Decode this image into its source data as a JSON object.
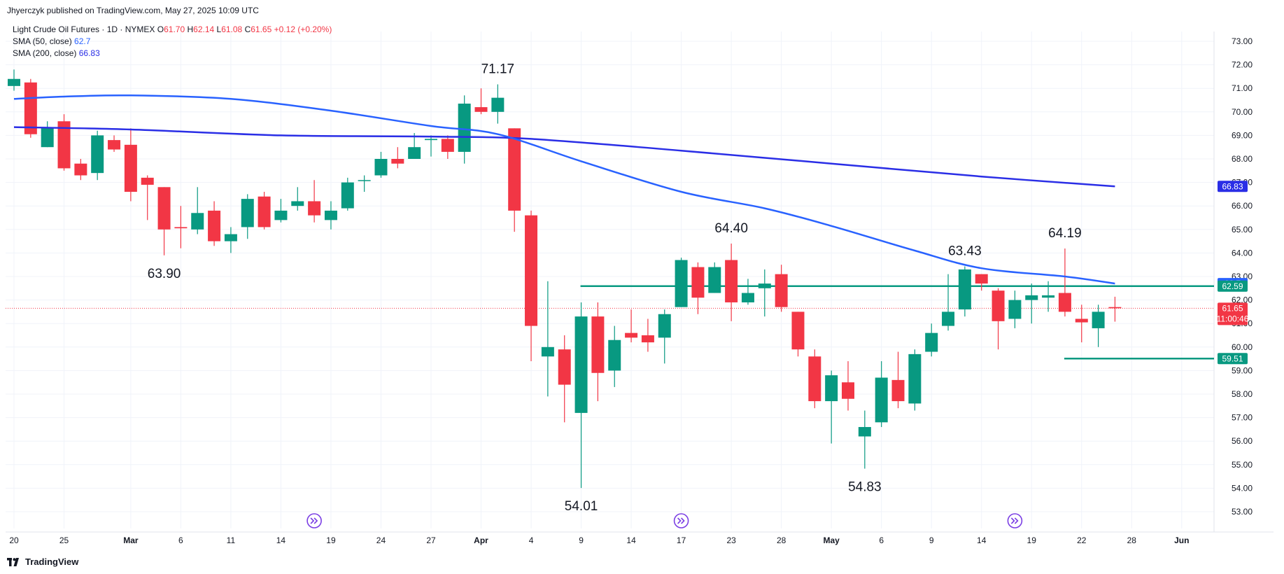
{
  "header": {
    "publisher": "Jhyerczyk published on TradingView.com, May 27, 2025 10:09 UTC",
    "symbol": "Light Crude Oil Futures · 1D · NYMEX",
    "ohlc": {
      "o_label": "O",
      "o": "61.70",
      "h_label": "H",
      "h": "62.14",
      "l_label": "L",
      "l": "61.08",
      "c_label": "C",
      "c": "61.65",
      "change": "+0.12 (+0.20%)"
    },
    "sma50": {
      "label": "SMA (50, close)",
      "value": "62.7"
    },
    "sma200": {
      "label": "SMA (200, close)",
      "value": "66.83"
    }
  },
  "footer": {
    "brand": "TradingView"
  },
  "colors": {
    "up": "#089981",
    "down": "#f23645",
    "sma50": "#2962ff",
    "sma200": "#2a2ee6",
    "level": "#089981",
    "last_price_line": "#f23645"
  },
  "chart_data": {
    "type": "candlestick",
    "y_axis": {
      "range": [
        52.5,
        73.5
      ],
      "ticks": [
        "53.00",
        "54.00",
        "55.00",
        "56.00",
        "57.00",
        "58.00",
        "59.00",
        "60.00",
        "61.00",
        "62.00",
        "63.00",
        "64.00",
        "65.00",
        "66.00",
        "67.00",
        "68.00",
        "69.00",
        "70.00",
        "71.00",
        "72.00",
        "73.00"
      ]
    },
    "x_axis": {
      "ticks": [
        {
          "label": "20",
          "date": "2025-02-20"
        },
        {
          "label": "25",
          "date": "2025-02-25"
        },
        {
          "label": "Mar",
          "date": "2025-03-03"
        },
        {
          "label": "6",
          "date": "2025-03-06"
        },
        {
          "label": "11",
          "date": "2025-03-11"
        },
        {
          "label": "14",
          "date": "2025-03-14"
        },
        {
          "label": "19",
          "date": "2025-03-19"
        },
        {
          "label": "24",
          "date": "2025-03-24"
        },
        {
          "label": "27",
          "date": "2025-03-27"
        },
        {
          "label": "Apr",
          "date": "2025-04-01"
        },
        {
          "label": "4",
          "date": "2025-04-04"
        },
        {
          "label": "9",
          "date": "2025-04-09"
        },
        {
          "label": "14",
          "date": "2025-04-14"
        },
        {
          "label": "17",
          "date": "2025-04-17"
        },
        {
          "label": "23",
          "date": "2025-04-23"
        },
        {
          "label": "28",
          "date": "2025-04-28"
        },
        {
          "label": "May",
          "date": "2025-05-01"
        },
        {
          "label": "6",
          "date": "2025-05-06"
        },
        {
          "label": "9",
          "date": "2025-05-09"
        },
        {
          "label": "14",
          "date": "2025-05-14"
        },
        {
          "label": "19",
          "date": "2025-05-19"
        },
        {
          "label": "22",
          "date": "2025-05-22"
        },
        {
          "label": "28",
          "date": "2025-05-28"
        },
        {
          "label": "Jun",
          "date": "2025-06-02"
        }
      ]
    },
    "candles": [
      {
        "date": "2025-02-20",
        "o": 71.1,
        "h": 71.8,
        "l": 70.9,
        "c": 71.4
      },
      {
        "date": "2025-02-21",
        "o": 71.25,
        "h": 71.4,
        "l": 68.9,
        "c": 69.05
      },
      {
        "date": "2025-02-24",
        "o": 68.5,
        "h": 69.6,
        "l": 68.5,
        "c": 69.35
      },
      {
        "date": "2025-02-25",
        "o": 69.6,
        "h": 69.9,
        "l": 67.5,
        "c": 67.6
      },
      {
        "date": "2025-02-26",
        "o": 67.8,
        "h": 68.0,
        "l": 67.1,
        "c": 67.3
      },
      {
        "date": "2025-02-27",
        "o": 67.4,
        "h": 69.2,
        "l": 67.1,
        "c": 69.0
      },
      {
        "date": "2025-02-28",
        "o": 68.8,
        "h": 69.0,
        "l": 68.3,
        "c": 68.4
      },
      {
        "date": "2025-03-03",
        "o": 68.6,
        "h": 69.3,
        "l": 66.2,
        "c": 66.6
      },
      {
        "date": "2025-03-04",
        "o": 67.2,
        "h": 67.3,
        "l": 65.4,
        "c": 66.9
      },
      {
        "date": "2025-03-05",
        "o": 66.8,
        "h": 66.8,
        "l": 63.9,
        "c": 65.0
      },
      {
        "date": "2025-03-06",
        "o": 65.1,
        "h": 66.0,
        "l": 64.2,
        "c": 65.05
      },
      {
        "date": "2025-03-07",
        "o": 65.0,
        "h": 66.8,
        "l": 64.8,
        "c": 65.7
      },
      {
        "date": "2025-03-10",
        "o": 65.8,
        "h": 66.2,
        "l": 64.3,
        "c": 64.5
      },
      {
        "date": "2025-03-11",
        "o": 64.5,
        "h": 65.1,
        "l": 64.0,
        "c": 64.8
      },
      {
        "date": "2025-03-12",
        "o": 65.1,
        "h": 66.5,
        "l": 64.6,
        "c": 66.3
      },
      {
        "date": "2025-03-13",
        "o": 66.4,
        "h": 66.6,
        "l": 65.0,
        "c": 65.1
      },
      {
        "date": "2025-03-14",
        "o": 65.4,
        "h": 66.3,
        "l": 65.3,
        "c": 65.8
      },
      {
        "date": "2025-03-17",
        "o": 66.0,
        "h": 66.8,
        "l": 65.8,
        "c": 66.2
      },
      {
        "date": "2025-03-18",
        "o": 66.2,
        "h": 67.1,
        "l": 65.3,
        "c": 65.6
      },
      {
        "date": "2025-03-19",
        "o": 65.4,
        "h": 66.2,
        "l": 65.0,
        "c": 65.8
      },
      {
        "date": "2025-03-20",
        "o": 65.9,
        "h": 67.2,
        "l": 65.8,
        "c": 67.0
      },
      {
        "date": "2025-03-21",
        "o": 67.1,
        "h": 67.3,
        "l": 66.6,
        "c": 67.1
      },
      {
        "date": "2025-03-24",
        "o": 67.3,
        "h": 68.3,
        "l": 67.2,
        "c": 68.0
      },
      {
        "date": "2025-03-25",
        "o": 68.0,
        "h": 68.5,
        "l": 67.6,
        "c": 67.8
      },
      {
        "date": "2025-03-26",
        "o": 68.0,
        "h": 69.1,
        "l": 68.1,
        "c": 68.5
      },
      {
        "date": "2025-03-27",
        "o": 68.8,
        "h": 69.0,
        "l": 68.1,
        "c": 68.85
      },
      {
        "date": "2025-03-28",
        "o": 68.85,
        "h": 69.0,
        "l": 68.0,
        "c": 68.3
      },
      {
        "date": "2025-03-31",
        "o": 68.3,
        "h": 70.7,
        "l": 67.8,
        "c": 70.35
      },
      {
        "date": "2025-04-01",
        "o": 70.2,
        "h": 71.0,
        "l": 69.9,
        "c": 70.0
      },
      {
        "date": "2025-04-02",
        "o": 70.0,
        "h": 71.17,
        "l": 69.5,
        "c": 70.6
      },
      {
        "date": "2025-04-03",
        "o": 69.3,
        "h": 69.3,
        "l": 64.9,
        "c": 65.8
      },
      {
        "date": "2025-04-04",
        "o": 65.6,
        "h": 65.8,
        "l": 59.4,
        "c": 60.9
      },
      {
        "date": "2025-04-07",
        "o": 59.6,
        "h": 62.8,
        "l": 57.9,
        "c": 60.0
      },
      {
        "date": "2025-04-08",
        "o": 59.9,
        "h": 60.5,
        "l": 56.8,
        "c": 58.4
      },
      {
        "date": "2025-04-09",
        "o": 57.2,
        "h": 61.9,
        "l": 54.01,
        "c": 61.3
      },
      {
        "date": "2025-04-10",
        "o": 61.3,
        "h": 61.9,
        "l": 57.7,
        "c": 58.9
      },
      {
        "date": "2025-04-11",
        "o": 59.0,
        "h": 60.9,
        "l": 58.3,
        "c": 60.3
      },
      {
        "date": "2025-04-14",
        "o": 60.6,
        "h": 61.6,
        "l": 60.2,
        "c": 60.4
      },
      {
        "date": "2025-04-15",
        "o": 60.5,
        "h": 61.2,
        "l": 59.8,
        "c": 60.2
      },
      {
        "date": "2025-04-16",
        "o": 60.4,
        "h": 61.6,
        "l": 59.3,
        "c": 61.4
      },
      {
        "date": "2025-04-17",
        "o": 61.7,
        "h": 63.8,
        "l": 61.7,
        "c": 63.7
      },
      {
        "date": "2025-04-21",
        "o": 63.4,
        "h": 63.6,
        "l": 61.4,
        "c": 62.1
      },
      {
        "date": "2025-04-22",
        "o": 62.3,
        "h": 63.6,
        "l": 62.3,
        "c": 63.4
      },
      {
        "date": "2025-04-23",
        "o": 63.7,
        "h": 64.4,
        "l": 61.1,
        "c": 61.9
      },
      {
        "date": "2025-04-24",
        "o": 61.9,
        "h": 62.9,
        "l": 61.8,
        "c": 62.3
      },
      {
        "date": "2025-04-25",
        "o": 62.5,
        "h": 63.3,
        "l": 61.3,
        "c": 62.7
      },
      {
        "date": "2025-04-28",
        "o": 63.1,
        "h": 63.5,
        "l": 61.5,
        "c": 61.7
      },
      {
        "date": "2025-04-29",
        "o": 61.5,
        "h": 61.5,
        "l": 59.6,
        "c": 59.9
      },
      {
        "date": "2025-04-30",
        "o": 59.6,
        "h": 59.9,
        "l": 57.4,
        "c": 57.7
      },
      {
        "date": "2025-05-01",
        "o": 57.7,
        "h": 59.0,
        "l": 55.9,
        "c": 58.8
      },
      {
        "date": "2025-05-02",
        "o": 58.5,
        "h": 59.4,
        "l": 57.3,
        "c": 57.8
      },
      {
        "date": "2025-05-05",
        "o": 56.2,
        "h": 57.3,
        "l": 54.83,
        "c": 56.6
      },
      {
        "date": "2025-05-06",
        "o": 56.8,
        "h": 59.4,
        "l": 56.6,
        "c": 58.7
      },
      {
        "date": "2025-05-07",
        "o": 58.6,
        "h": 59.8,
        "l": 57.4,
        "c": 57.7
      },
      {
        "date": "2025-05-08",
        "o": 57.6,
        "h": 59.9,
        "l": 57.3,
        "c": 59.7
      },
      {
        "date": "2025-05-09",
        "o": 59.8,
        "h": 61.0,
        "l": 59.6,
        "c": 60.6
      },
      {
        "date": "2025-05-12",
        "o": 60.9,
        "h": 63.1,
        "l": 60.7,
        "c": 61.5
      },
      {
        "date": "2025-05-13",
        "o": 61.6,
        "h": 63.43,
        "l": 61.3,
        "c": 63.3
      },
      {
        "date": "2025-05-14",
        "o": 63.1,
        "h": 63.1,
        "l": 62.4,
        "c": 62.7
      },
      {
        "date": "2025-05-15",
        "o": 62.4,
        "h": 62.5,
        "l": 59.9,
        "c": 61.1
      },
      {
        "date": "2025-05-16",
        "o": 61.2,
        "h": 62.4,
        "l": 60.8,
        "c": 62.0
      },
      {
        "date": "2025-05-19",
        "o": 62.0,
        "h": 62.7,
        "l": 61.0,
        "c": 62.2
      },
      {
        "date": "2025-05-20",
        "o": 62.1,
        "h": 62.8,
        "l": 61.5,
        "c": 62.2
      },
      {
        "date": "2025-05-21",
        "o": 62.3,
        "h": 64.19,
        "l": 61.3,
        "c": 61.5
      },
      {
        "date": "2025-05-22",
        "o": 61.2,
        "h": 61.8,
        "l": 60.2,
        "c": 61.05
      },
      {
        "date": "2025-05-23",
        "o": 60.8,
        "h": 61.8,
        "l": 60.0,
        "c": 61.5
      },
      {
        "date": "2025-05-27",
        "o": 61.7,
        "h": 62.14,
        "l": 61.08,
        "c": 61.65
      }
    ],
    "sma_50": {
      "name": "SMA (50, close)",
      "points": [
        {
          "date": "2025-02-20",
          "v": 70.55
        },
        {
          "date": "2025-02-25",
          "v": 70.65
        },
        {
          "date": "2025-03-03",
          "v": 70.7
        },
        {
          "date": "2025-03-11",
          "v": 70.55
        },
        {
          "date": "2025-03-19",
          "v": 70.05
        },
        {
          "date": "2025-03-27",
          "v": 69.4
        },
        {
          "date": "2025-04-02",
          "v": 69.05
        },
        {
          "date": "2025-04-09",
          "v": 67.9
        },
        {
          "date": "2025-04-17",
          "v": 66.6
        },
        {
          "date": "2025-04-25",
          "v": 65.9
        },
        {
          "date": "2025-05-01",
          "v": 65.15
        },
        {
          "date": "2025-05-08",
          "v": 64.1
        },
        {
          "date": "2025-05-14",
          "v": 63.35
        },
        {
          "date": "2025-05-21",
          "v": 63.0
        },
        {
          "date": "2025-05-27",
          "v": 62.7
        }
      ]
    },
    "sma_200": {
      "name": "SMA (200, close)",
      "points": [
        {
          "date": "2025-02-20",
          "v": 69.35
        },
        {
          "date": "2025-03-03",
          "v": 69.25
        },
        {
          "date": "2025-03-14",
          "v": 69.0
        },
        {
          "date": "2025-03-27",
          "v": 68.95
        },
        {
          "date": "2025-04-04",
          "v": 68.85
        },
        {
          "date": "2025-04-17",
          "v": 68.35
        },
        {
          "date": "2025-05-01",
          "v": 67.8
        },
        {
          "date": "2025-05-14",
          "v": 67.25
        },
        {
          "date": "2025-05-27",
          "v": 66.83
        }
      ]
    },
    "horizontal_levels": [
      {
        "price": 62.59,
        "label": "62.59",
        "from": "2025-04-09",
        "to": "right-edge"
      },
      {
        "price": 59.51,
        "label": "59.51",
        "from": "2025-05-21",
        "to": "right-edge"
      }
    ],
    "last_price": {
      "price": 61.65,
      "label": "61.65",
      "countdown": "11:00:46"
    },
    "price_badges": [
      {
        "label": "66.83",
        "price": 66.83,
        "series": "sma_200"
      },
      {
        "label": "62.7",
        "price": 62.7,
        "series": "sma_50"
      }
    ],
    "annotations": [
      {
        "text": "71.17",
        "date": "2025-04-02",
        "price": 71.17,
        "position": "above"
      },
      {
        "text": "63.90",
        "date": "2025-03-05",
        "price": 63.9,
        "position": "below"
      },
      {
        "text": "64.40",
        "date": "2025-04-23",
        "price": 64.4,
        "position": "above"
      },
      {
        "text": "54.01",
        "date": "2025-04-09",
        "price": 54.01,
        "position": "below"
      },
      {
        "text": "54.83",
        "date": "2025-05-05",
        "price": 54.83,
        "position": "below"
      },
      {
        "text": "63.43",
        "date": "2025-05-13",
        "price": 63.43,
        "position": "above"
      },
      {
        "text": "64.19",
        "date": "2025-05-21",
        "price": 64.19,
        "position": "above"
      }
    ],
    "event_markers": [
      {
        "date": "2025-03-18",
        "icon": "double-chevron-icon"
      },
      {
        "date": "2025-04-17",
        "icon": "double-chevron-icon"
      },
      {
        "date": "2025-05-16",
        "icon": "double-chevron-icon"
      }
    ],
    "grid": true
  }
}
